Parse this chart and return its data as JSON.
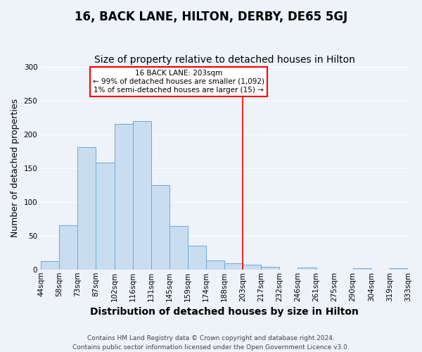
{
  "title": "16, BACK LANE, HILTON, DERBY, DE65 5GJ",
  "subtitle": "Size of property relative to detached houses in Hilton",
  "xlabel": "Distribution of detached houses by size in Hilton",
  "ylabel": "Number of detached properties",
  "bin_labels": [
    "44sqm",
    "58sqm",
    "73sqm",
    "87sqm",
    "102sqm",
    "116sqm",
    "131sqm",
    "145sqm",
    "159sqm",
    "174sqm",
    "188sqm",
    "203sqm",
    "217sqm",
    "232sqm",
    "246sqm",
    "261sqm",
    "275sqm",
    "290sqm",
    "304sqm",
    "319sqm",
    "333sqm"
  ],
  "bar_values": [
    12,
    65,
    181,
    158,
    215,
    219,
    125,
    64,
    35,
    13,
    9,
    7,
    4,
    0,
    3,
    0,
    0,
    2,
    0,
    2
  ],
  "bar_color": "#c9ddf0",
  "bar_edge_color": "#6aaad4",
  "vline_x_index": 11,
  "vline_color": "red",
  "annotation_title": "16 BACK LANE: 203sqm",
  "annotation_line1": "← 99% of detached houses are smaller (1,092)",
  "annotation_line2": "1% of semi-detached houses are larger (15) →",
  "annotation_box_color": "white",
  "annotation_box_edge_color": "red",
  "ylim": [
    0,
    300
  ],
  "yticks": [
    0,
    50,
    100,
    150,
    200,
    250,
    300
  ],
  "footer1": "Contains HM Land Registry data © Crown copyright and database right 2024.",
  "footer2": "Contains public sector information licensed under the Open Government Licence v3.0.",
  "background_color": "#eef2f9",
  "grid_color": "#ffffff",
  "title_fontsize": 12,
  "subtitle_fontsize": 10,
  "axis_label_fontsize": 9,
  "tick_fontsize": 7.5,
  "footer_fontsize": 6.5
}
